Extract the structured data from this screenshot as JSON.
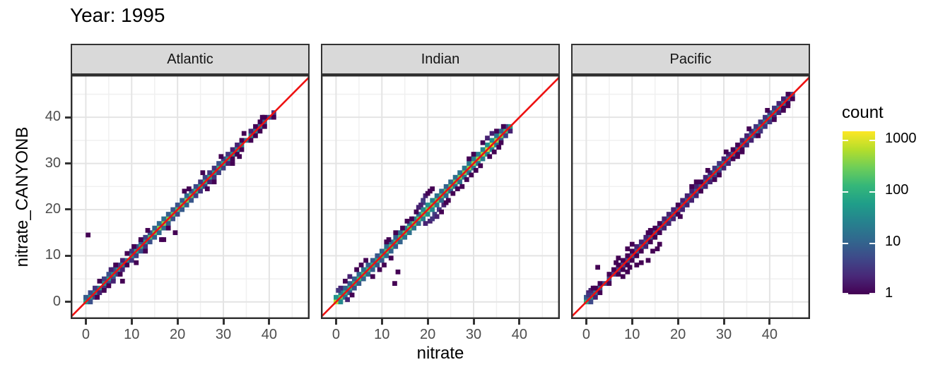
{
  "title": "Year: 1995",
  "axes": {
    "x_label": "nitrate",
    "y_label": "nitrate_CANYONB",
    "x_ticks": [
      0,
      10,
      20,
      30,
      40
    ],
    "y_ticks": [
      0,
      10,
      20,
      30,
      40
    ],
    "x_minor": [
      5,
      15,
      25,
      35,
      45
    ],
    "y_minor": [
      5,
      15,
      25,
      35,
      45
    ]
  },
  "legend": {
    "title": "count",
    "tick_labels": [
      "1000",
      "100",
      "10",
      "1"
    ],
    "tick_values": [
      1000,
      100,
      10,
      1
    ],
    "scale": "log10"
  },
  "colors": {
    "reference_line": "#ee1111",
    "strip_bg": "#d9d9d9",
    "panel_border": "#2e2e2e",
    "grid_major": "#e4e4e4",
    "grid_minor": "#f0f0f0",
    "tick_label": "#4d4d4d",
    "viridis": [
      "#440154",
      "#482878",
      "#3e4989",
      "#31688e",
      "#26828e",
      "#1f9e89",
      "#35b779",
      "#6ece58",
      "#b5de2b",
      "#fde725"
    ]
  },
  "chart_data": {
    "type": "heatmap",
    "subtype": "bin2d-facets",
    "title": "Year: 1995",
    "xlabel": "nitrate",
    "ylabel": "nitrate_CANYONB",
    "x_domain": [
      -3.3,
      48.8
    ],
    "y_domain": [
      -3.7,
      49.2
    ],
    "bin_size": 1,
    "count_scale": {
      "type": "log10",
      "min": 1,
      "max": 1460
    },
    "reference_line": {
      "type": "y=x"
    },
    "grid": true,
    "legend_position": "right",
    "facets": [
      {
        "label": "Atlantic",
        "data_range": [
          0,
          41
        ],
        "series": [
          {
            "offset": 0,
            "start": 0,
            "counts": [
              60,
              45,
              30,
              35,
              50,
              60,
              45,
              35,
              30,
              28,
              40,
              70,
              90,
              60,
              160,
              260,
              320,
              380,
              300,
              220,
              170,
              260,
              320,
              220,
              120,
              80,
              90,
              75,
              65,
              100,
              85,
              60,
              45,
              38,
              30,
              22,
              30,
              20,
              14,
              9,
              6,
              3
            ]
          },
          {
            "offset": 1,
            "start": 0,
            "counts": [
              8,
              5,
              3,
              0,
              4,
              6,
              5,
              3,
              2,
              0,
              3,
              5,
              7,
              4,
              6,
              10,
              12,
              14,
              9,
              7,
              6,
              9,
              12,
              8,
              5,
              3,
              4,
              3,
              3,
              6,
              4,
              3,
              2,
              2,
              1,
              0,
              2,
              1,
              1,
              1
            ]
          },
          {
            "offset": -1,
            "start": 1,
            "counts": [
              6,
              4,
              2,
              3,
              5,
              6,
              4,
              2,
              1,
              3,
              4,
              6,
              3,
              6,
              9,
              11,
              12,
              8,
              6,
              5,
              8,
              9,
              7,
              4,
              3,
              4,
              2,
              3,
              4,
              4,
              2,
              1,
              1,
              1,
              0,
              1,
              1,
              1,
              1,
              0,
              1
            ]
          }
        ],
        "extra": [
          [
            0.5,
            14.5,
            1
          ],
          [
            8,
            4.5,
            1
          ],
          [
            11,
            8.5,
            1
          ],
          [
            13,
            11,
            1
          ],
          [
            16.5,
            13.5,
            1
          ],
          [
            19.5,
            15,
            1
          ],
          [
            17,
            13.5,
            1
          ],
          [
            21.5,
            24,
            1
          ],
          [
            22.5,
            24.5,
            1
          ],
          [
            25.5,
            28,
            1
          ],
          [
            28,
            26,
            1
          ],
          [
            32,
            30,
            1
          ],
          [
            33.5,
            31.5,
            1
          ],
          [
            2.5,
            1,
            1
          ],
          [
            4,
            2.5,
            1
          ],
          [
            3,
            4.5,
            1
          ],
          [
            5.5,
            7,
            2
          ],
          [
            6.5,
            8,
            1
          ],
          [
            7.5,
            6,
            1
          ],
          [
            9,
            10.5,
            1
          ],
          [
            10.5,
            12,
            1
          ],
          [
            12,
            13.5,
            1
          ],
          [
            13.5,
            15.5,
            1
          ],
          [
            18,
            16,
            1
          ],
          [
            26.5,
            24.5,
            1
          ],
          [
            29.5,
            31.5,
            1
          ],
          [
            34.5,
            36.5,
            1
          ],
          [
            38.5,
            40,
            1
          ],
          [
            5,
            3.5,
            1
          ],
          [
            6,
            4.5,
            2
          ]
        ]
      },
      {
        "label": "Indian",
        "data_range": [
          0,
          38.5
        ],
        "series": [
          {
            "offset": 0,
            "start": 0,
            "counts": [
              650,
              220,
              120,
              90,
              110,
              140,
              160,
              130,
              100,
              90,
              130,
              170,
              150,
              120,
              160,
              200,
              240,
              280,
              220,
              260,
              300,
              280,
              240,
              200,
              180,
              220,
              260,
              300,
              340,
              380,
              420,
              460,
              520,
              900,
              850,
              500,
              300,
              150,
              60
            ]
          },
          {
            "offset": 1,
            "start": 0,
            "counts": [
              40,
              20,
              10,
              8,
              9,
              12,
              14,
              10,
              8,
              7,
              10,
              14,
              12,
              9,
              12,
              16,
              18,
              20,
              15,
              30,
              40,
              25,
              15,
              12,
              10,
              12,
              14,
              16,
              18,
              20,
              22,
              24,
              28,
              40,
              35,
              20,
              10,
              5
            ]
          },
          {
            "offset": -1,
            "start": 1,
            "counts": [
              30,
              15,
              8,
              6,
              8,
              10,
              12,
              9,
              7,
              8,
              12,
              10,
              8,
              10,
              14,
              15,
              16,
              12,
              20,
              35,
              30,
              18,
              12,
              10,
              10,
              12,
              14,
              15,
              16,
              18,
              20,
              22,
              30,
              30,
              18,
              8,
              4,
              2
            ]
          }
        ],
        "extra": [
          [
            19,
            22,
            3
          ],
          [
            19.5,
            23,
            2
          ],
          [
            20,
            23.5,
            1
          ],
          [
            20.5,
            24,
            1
          ],
          [
            21,
            24.5,
            1
          ],
          [
            19,
            21.5,
            4
          ],
          [
            18.5,
            21,
            2
          ],
          [
            23.5,
            21,
            2
          ],
          [
            22.5,
            20,
            3
          ],
          [
            21.5,
            19,
            4
          ],
          [
            22,
            18.5,
            2
          ],
          [
            23,
            19.5,
            1
          ],
          [
            24,
            21.5,
            1
          ],
          [
            20.5,
            17.5,
            2
          ],
          [
            21,
            18,
            3
          ],
          [
            19.5,
            17,
            2
          ],
          [
            18,
            20.5,
            2
          ],
          [
            17.5,
            19.5,
            1
          ],
          [
            16.5,
            18,
            1
          ],
          [
            24.5,
            22,
            1
          ],
          [
            25.5,
            23.5,
            1
          ],
          [
            26.5,
            24.5,
            1
          ],
          [
            15.5,
            17.5,
            1
          ],
          [
            14.5,
            16,
            1
          ],
          [
            13,
            15,
            1
          ],
          [
            11.5,
            13.5,
            1
          ],
          [
            11,
            13,
            1
          ],
          [
            12.8,
            4,
            1
          ],
          [
            13.5,
            6.5,
            1
          ],
          [
            10.5,
            8,
            1
          ],
          [
            12,
            9.5,
            1
          ],
          [
            9.5,
            7,
            1
          ],
          [
            8,
            5.5,
            1
          ],
          [
            3.5,
            1.5,
            1
          ],
          [
            2.5,
            0.5,
            2
          ],
          [
            1,
            3,
            2
          ],
          [
            2,
            4.5,
            1
          ],
          [
            0.5,
            2.5,
            3
          ],
          [
            5.5,
            8,
            1
          ],
          [
            4.5,
            7,
            1
          ],
          [
            3,
            5.5,
            2
          ],
          [
            6.5,
            9,
            1
          ],
          [
            28.5,
            26.5,
            1
          ],
          [
            29.5,
            27.5,
            1
          ],
          [
            30.5,
            28.5,
            1
          ],
          [
            27.5,
            25,
            1
          ],
          [
            31.5,
            29.5,
            1
          ],
          [
            33.5,
            31.5,
            1
          ],
          [
            34.5,
            32.5,
            1
          ],
          [
            35.5,
            33.5,
            1
          ],
          [
            36,
            34.5,
            1
          ],
          [
            36.5,
            38,
            1
          ],
          [
            35,
            37,
            1
          ],
          [
            34,
            36.5,
            2
          ],
          [
            33,
            35.5,
            2
          ],
          [
            32,
            34.5,
            1
          ],
          [
            30,
            32,
            1
          ],
          [
            29,
            31,
            1
          ]
        ]
      },
      {
        "label": "Pacific",
        "data_range": [
          0,
          45
        ],
        "series": [
          {
            "offset": 0,
            "start": 0,
            "counts": [
              90,
              45,
              15,
              8,
              6,
              5,
              4,
              4,
              5,
              6,
              7,
              8,
              9,
              8,
              7,
              6,
              7,
              8,
              9,
              8,
              7,
              8,
              9,
              10,
              9,
              8,
              9,
              12,
              18,
              25,
              20,
              12,
              10,
              9,
              10,
              14,
              18,
              22,
              25,
              28,
              30,
              26,
              20,
              15,
              10,
              5
            ]
          },
          {
            "offset": 1,
            "start": 0,
            "counts": [
              8,
              4,
              1,
              1,
              0,
              1,
              1,
              1,
              1,
              1,
              1,
              2,
              2,
              2,
              1,
              1,
              1,
              2,
              2,
              2,
              1,
              2,
              2,
              2,
              2,
              1,
              2,
              2,
              3,
              3,
              2,
              2,
              1,
              1,
              2,
              2,
              3,
              3,
              3,
              3,
              4,
              3,
              2,
              2,
              1
            ]
          },
          {
            "offset": -1,
            "start": 1,
            "counts": [
              5,
              2,
              1,
              0,
              1,
              0,
              1,
              1,
              1,
              1,
              1,
              1,
              2,
              1,
              1,
              1,
              2,
              2,
              2,
              1,
              2,
              2,
              2,
              2,
              1,
              2,
              2,
              3,
              3,
              2,
              2,
              1,
              1,
              1,
              2,
              2,
              3,
              3,
              3,
              3,
              2,
              2,
              1,
              1,
              1
            ]
          }
        ],
        "extra": [
          [
            2.5,
            7.5,
            1
          ],
          [
            8,
            5.5,
            1
          ],
          [
            9,
            6.5,
            1
          ],
          [
            9.5,
            7.5,
            1
          ],
          [
            11,
            8,
            1
          ],
          [
            12,
            8.5,
            1
          ],
          [
            13.5,
            9,
            1
          ],
          [
            14.5,
            11,
            1
          ],
          [
            15.5,
            11.5,
            1
          ],
          [
            16,
            12.5,
            1
          ],
          [
            7,
            9.5,
            1
          ],
          [
            6.5,
            8.5,
            1
          ],
          [
            9,
            11.5,
            1
          ],
          [
            10,
            12.5,
            1
          ],
          [
            13.5,
            15,
            1
          ],
          [
            14,
            15.5,
            1
          ],
          [
            0.5,
            2,
            2
          ],
          [
            1,
            2.5,
            2
          ],
          [
            0.5,
            1.5,
            3
          ],
          [
            1.5,
            3,
            1
          ],
          [
            23,
            25,
            1
          ],
          [
            24,
            26,
            1
          ],
          [
            28,
            26.5,
            1
          ],
          [
            29,
            27.5,
            1
          ],
          [
            33,
            31.5,
            1
          ],
          [
            34,
            32.5,
            1
          ],
          [
            37.5,
            36,
            1
          ],
          [
            41,
            39.5,
            1
          ],
          [
            20.5,
            18.5,
            1
          ],
          [
            26.5,
            28.5,
            1
          ],
          [
            30.5,
            32.5,
            1
          ],
          [
            35.5,
            37.5,
            1
          ],
          [
            39.5,
            41.5,
            1
          ],
          [
            43,
            41.5,
            1
          ],
          [
            44,
            42.5,
            1
          ]
        ]
      }
    ]
  }
}
